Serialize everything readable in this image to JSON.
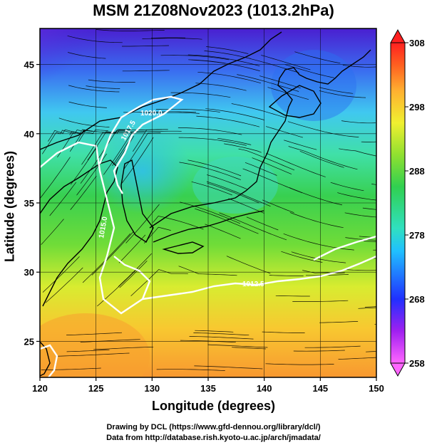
{
  "title": "MSM 21Z08Nov2023 (1013.2hPa)",
  "map": {
    "x_axis_label": "Longitude (degrees)",
    "y_axis_label": "Latitude  (degrees)",
    "lon_range": [
      120,
      150
    ],
    "lat_range": [
      22.4,
      47.6
    ],
    "lon_ticks": [
      "120",
      "125",
      "130",
      "135",
      "140",
      "145",
      "150"
    ],
    "lat_ticks": [
      "25",
      "30",
      "35",
      "40",
      "45"
    ],
    "grid": true
  },
  "colorbar": {
    "ticks": [
      "308",
      "298",
      "288",
      "278",
      "268",
      "258"
    ],
    "range": [
      258,
      308
    ],
    "colors": [
      "#ff66ff",
      "#a020f0",
      "#2030ff",
      "#20c0ff",
      "#30e0c0",
      "#30d050",
      "#90e030",
      "#f0f030",
      "#ffb030",
      "#ff6020",
      "#ff2020"
    ]
  },
  "pressure_contours": [
    {
      "label": "1020.0"
    },
    {
      "label": "1017.5"
    },
    {
      "label": "1015.0"
    },
    {
      "label": "1012.5"
    }
  ],
  "credits": {
    "line1": "Drawing by DCL (https://www.gfd-dennou.org/library/dcl/)",
    "line2": "Data from http://database.rish.kyoto-u.ac.jp/arch/jmadata/"
  }
}
